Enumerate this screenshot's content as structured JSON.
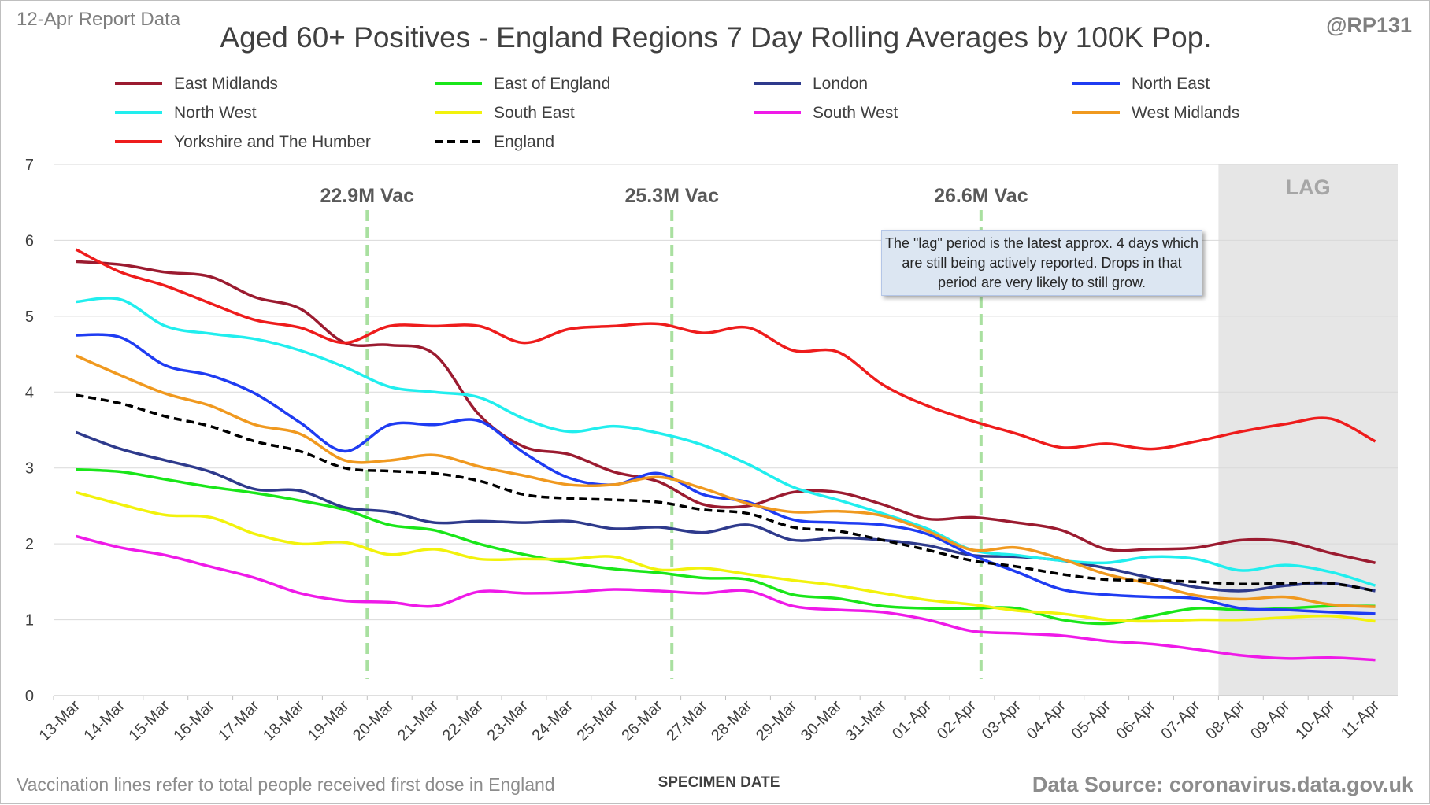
{
  "header": {
    "report_label": "12-Apr Report Data",
    "handle": "@RP131"
  },
  "footer": {
    "note": "Vaccination lines refer to total people received first dose in England",
    "source": "Data Source: coronavirus.data.gov.uk"
  },
  "annotation": {
    "text": "The \"lag\" period is the latest approx. 4 days which are still being actively reported. Drops in that period are very likely to still grow."
  },
  "chart_data": {
    "type": "line",
    "title": "Aged 60+ Positives - England Regions 7 Day Rolling Averages by 100K Pop.",
    "xlabel": "SPECIMEN DATE",
    "ylabel": "",
    "ylim": [
      0,
      7
    ],
    "yticks": [
      0,
      1,
      2,
      3,
      4,
      5,
      6,
      7
    ],
    "grid": true,
    "legend_position": "top",
    "x": [
      "13-Mar",
      "14-Mar",
      "15-Mar",
      "16-Mar",
      "17-Mar",
      "18-Mar",
      "19-Mar",
      "20-Mar",
      "21-Mar",
      "22-Mar",
      "23-Mar",
      "24-Mar",
      "25-Mar",
      "26-Mar",
      "27-Mar",
      "28-Mar",
      "29-Mar",
      "30-Mar",
      "31-Mar",
      "01-Apr",
      "02-Apr",
      "03-Apr",
      "04-Apr",
      "05-Apr",
      "06-Apr",
      "07-Apr",
      "08-Apr",
      "09-Apr",
      "10-Apr",
      "11-Apr"
    ],
    "lag_start": "07-Apr",
    "lag_label": "LAG",
    "vaccination_lines": [
      {
        "x": 6.5,
        "label": "22.9M Vac"
      },
      {
        "x": 13.3,
        "label": "25.3M Vac"
      },
      {
        "x": 20.2,
        "label": "26.6M Vac"
      }
    ],
    "series": [
      {
        "name": "East Midlands",
        "color": "#9b1b30",
        "dash": false,
        "values": [
          5.72,
          5.68,
          5.58,
          5.52,
          5.25,
          5.1,
          4.65,
          4.62,
          4.5,
          3.7,
          3.28,
          3.18,
          2.95,
          2.82,
          2.52,
          2.5,
          2.68,
          2.68,
          2.52,
          2.33,
          2.35,
          2.28,
          2.18,
          1.93,
          1.93,
          1.95,
          2.05,
          2.03,
          1.88,
          1.75
        ]
      },
      {
        "name": "East of England",
        "color": "#19e619",
        "dash": false,
        "values": [
          2.98,
          2.95,
          2.85,
          2.75,
          2.67,
          2.57,
          2.45,
          2.25,
          2.18,
          2.0,
          1.86,
          1.75,
          1.67,
          1.62,
          1.55,
          1.53,
          1.33,
          1.28,
          1.18,
          1.15,
          1.15,
          1.15,
          1.0,
          0.95,
          1.05,
          1.15,
          1.13,
          1.15,
          1.18,
          1.18
        ]
      },
      {
        "name": "London",
        "color": "#2e3a8c",
        "dash": false,
        "values": [
          3.47,
          3.25,
          3.1,
          2.95,
          2.72,
          2.7,
          2.48,
          2.42,
          2.28,
          2.3,
          2.28,
          2.3,
          2.2,
          2.22,
          2.15,
          2.25,
          2.05,
          2.08,
          2.05,
          1.98,
          1.85,
          1.83,
          1.78,
          1.68,
          1.55,
          1.43,
          1.38,
          1.45,
          1.48,
          1.38
        ]
      },
      {
        "name": "North East",
        "color": "#1f3cf2",
        "dash": false,
        "values": [
          4.75,
          4.72,
          4.35,
          4.22,
          3.98,
          3.6,
          3.22,
          3.57,
          3.57,
          3.62,
          3.2,
          2.87,
          2.78,
          2.93,
          2.65,
          2.55,
          2.32,
          2.28,
          2.25,
          2.13,
          1.85,
          1.63,
          1.4,
          1.33,
          1.3,
          1.28,
          1.15,
          1.13,
          1.1,
          1.08
        ]
      },
      {
        "name": "North West",
        "color": "#21eeee",
        "dash": false,
        "values": [
          5.19,
          5.22,
          4.87,
          4.77,
          4.7,
          4.55,
          4.33,
          4.07,
          4.0,
          3.93,
          3.65,
          3.48,
          3.55,
          3.46,
          3.3,
          3.05,
          2.75,
          2.58,
          2.4,
          2.2,
          1.92,
          1.85,
          1.78,
          1.75,
          1.83,
          1.8,
          1.65,
          1.72,
          1.63,
          1.45
        ]
      },
      {
        "name": "South East",
        "color": "#f2f20c",
        "dash": false,
        "values": [
          2.68,
          2.52,
          2.38,
          2.35,
          2.13,
          2.0,
          2.02,
          1.86,
          1.93,
          1.8,
          1.8,
          1.8,
          1.83,
          1.66,
          1.68,
          1.6,
          1.52,
          1.45,
          1.35,
          1.26,
          1.2,
          1.12,
          1.08,
          1.0,
          0.98,
          1.0,
          1.0,
          1.03,
          1.05,
          0.98
        ]
      },
      {
        "name": "South West",
        "color": "#ef1ae8",
        "dash": false,
        "values": [
          2.1,
          1.95,
          1.85,
          1.7,
          1.55,
          1.35,
          1.25,
          1.23,
          1.18,
          1.37,
          1.35,
          1.36,
          1.4,
          1.38,
          1.35,
          1.38,
          1.18,
          1.13,
          1.1,
          1.0,
          0.85,
          0.82,
          0.79,
          0.72,
          0.68,
          0.61,
          0.53,
          0.49,
          0.5,
          0.47
        ]
      },
      {
        "name": "West Midlands",
        "color": "#f0991f",
        "dash": false,
        "values": [
          4.48,
          4.22,
          3.98,
          3.82,
          3.57,
          3.45,
          3.1,
          3.1,
          3.17,
          3.02,
          2.9,
          2.78,
          2.78,
          2.88,
          2.73,
          2.53,
          2.42,
          2.43,
          2.37,
          2.17,
          1.92,
          1.95,
          1.8,
          1.6,
          1.47,
          1.32,
          1.27,
          1.3,
          1.2,
          1.17
        ]
      },
      {
        "name": "Yorkshire and The Humber",
        "color": "#ee1c1c",
        "dash": false,
        "values": [
          5.88,
          5.58,
          5.4,
          5.17,
          4.95,
          4.85,
          4.65,
          4.87,
          4.87,
          4.87,
          4.65,
          4.83,
          4.87,
          4.9,
          4.78,
          4.85,
          4.55,
          4.53,
          4.1,
          3.82,
          3.62,
          3.45,
          3.27,
          3.32,
          3.25,
          3.35,
          3.48,
          3.58,
          3.65,
          3.35
        ]
      },
      {
        "name": "England",
        "color": "#000000",
        "dash": true,
        "values": [
          3.96,
          3.85,
          3.68,
          3.55,
          3.35,
          3.22,
          3.0,
          2.96,
          2.93,
          2.83,
          2.65,
          2.6,
          2.58,
          2.55,
          2.45,
          2.4,
          2.22,
          2.17,
          2.05,
          1.92,
          1.78,
          1.7,
          1.6,
          1.53,
          1.52,
          1.5,
          1.47,
          1.48,
          1.48,
          1.38
        ]
      }
    ]
  }
}
